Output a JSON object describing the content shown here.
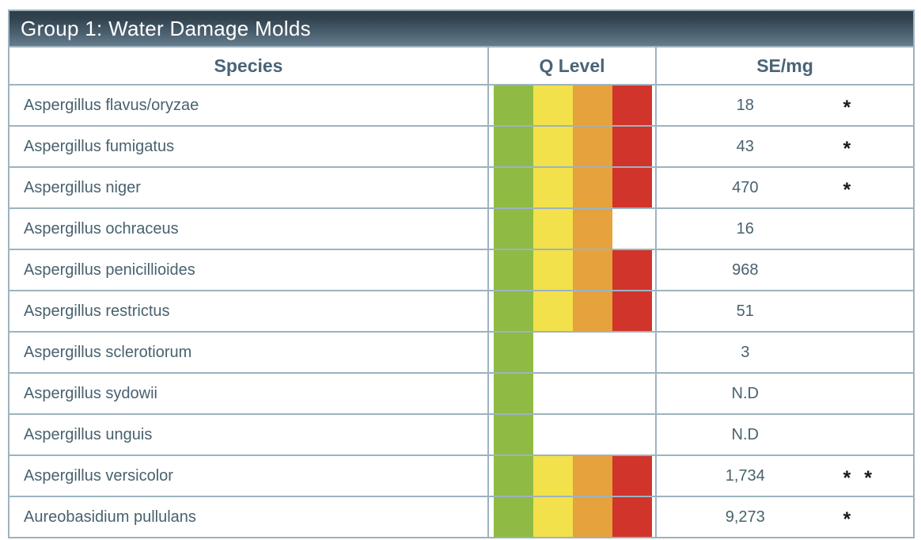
{
  "table": {
    "title": "Group 1: Water Damage Molds",
    "columns": [
      "Species",
      "Q Level",
      "SE/mg"
    ],
    "q_level_colors": [
      "#8fbb44",
      "#f2e14b",
      "#e5a23d",
      "#d0342b"
    ],
    "border_color": "#9db3bf",
    "header_text_color": "#4a6477",
    "rows": [
      {
        "species": "Aspergillus flavus/oryzae",
        "q_level": 4,
        "se_mg": "18",
        "flag": "*"
      },
      {
        "species": "Aspergillus fumigatus",
        "q_level": 4,
        "se_mg": "43",
        "flag": "*"
      },
      {
        "species": "Aspergillus niger",
        "q_level": 4,
        "se_mg": "470",
        "flag": "*"
      },
      {
        "species": "Aspergillus ochraceus",
        "q_level": 3,
        "se_mg": "16",
        "flag": ""
      },
      {
        "species": "Aspergillus penicillioides",
        "q_level": 4,
        "se_mg": "968",
        "flag": ""
      },
      {
        "species": "Aspergillus restrictus",
        "q_level": 4,
        "se_mg": "51",
        "flag": ""
      },
      {
        "species": "Aspergillus sclerotiorum",
        "q_level": 1,
        "se_mg": "3",
        "flag": ""
      },
      {
        "species": "Aspergillus sydowii",
        "q_level": 1,
        "se_mg": "N.D",
        "flag": ""
      },
      {
        "species": "Aspergillus unguis",
        "q_level": 1,
        "se_mg": "N.D",
        "flag": ""
      },
      {
        "species": "Aspergillus versicolor",
        "q_level": 4,
        "se_mg": "1,734",
        "flag": "* *"
      },
      {
        "species": "Aureobasidium pullulans",
        "q_level": 4,
        "se_mg": "9,273",
        "flag": "*"
      }
    ]
  },
  "chart_data": {
    "type": "table",
    "title": "Group 1: Water Damage Molds",
    "columns": [
      "Species",
      "Q Level",
      "SE/mg"
    ],
    "q_level_scale": [
      "green",
      "yellow",
      "orange",
      "red"
    ],
    "rows": [
      {
        "species": "Aspergillus flavus/oryzae",
        "q_level": 4,
        "se_mg": "18",
        "asterisks": 1
      },
      {
        "species": "Aspergillus fumigatus",
        "q_level": 4,
        "se_mg": "43",
        "asterisks": 1
      },
      {
        "species": "Aspergillus niger",
        "q_level": 4,
        "se_mg": "470",
        "asterisks": 1
      },
      {
        "species": "Aspergillus ochraceus",
        "q_level": 3,
        "se_mg": "16",
        "asterisks": 0
      },
      {
        "species": "Aspergillus penicillioides",
        "q_level": 4,
        "se_mg": "968",
        "asterisks": 0
      },
      {
        "species": "Aspergillus restrictus",
        "q_level": 4,
        "se_mg": "51",
        "asterisks": 0
      },
      {
        "species": "Aspergillus sclerotiorum",
        "q_level": 1,
        "se_mg": "3",
        "asterisks": 0
      },
      {
        "species": "Aspergillus sydowii",
        "q_level": 1,
        "se_mg": "N.D",
        "asterisks": 0
      },
      {
        "species": "Aspergillus unguis",
        "q_level": 1,
        "se_mg": "N.D",
        "asterisks": 0
      },
      {
        "species": "Aspergillus versicolor",
        "q_level": 4,
        "se_mg": "1,734",
        "asterisks": 2
      },
      {
        "species": "Aureobasidium pullulans",
        "q_level": 4,
        "se_mg": "9,273",
        "asterisks": 1
      }
    ]
  }
}
